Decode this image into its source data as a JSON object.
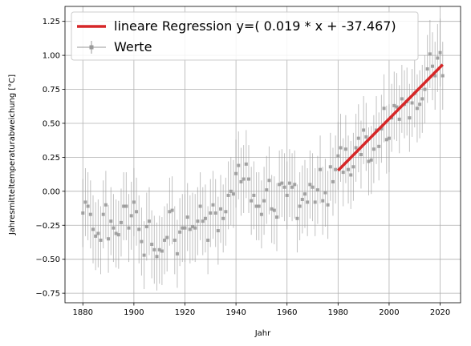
{
  "chart_data": {
    "type": "scatter",
    "xlabel": "Jahr",
    "ylabel": "Jahresmitteltemperaturabweichung [°C]",
    "xlim": [
      1873,
      2028
    ],
    "ylim": [
      -0.82,
      1.36
    ],
    "xticks": [
      1880,
      1900,
      1920,
      1940,
      1960,
      1980,
      2000,
      2020
    ],
    "yticks": [
      -0.75,
      -0.5,
      -0.25,
      0.0,
      0.25,
      0.5,
      0.75,
      1.0,
      1.25
    ],
    "xtick_labels": [
      "1880",
      "1900",
      "1920",
      "1940",
      "1960",
      "1980",
      "2000",
      "2020"
    ],
    "ytick_labels": [
      "−0.75",
      "−0.50",
      "−0.25",
      "0.00",
      "0.25",
      "0.50",
      "0.75",
      "1.00",
      "1.25"
    ],
    "grid": true,
    "legend_position": "top-left",
    "colors": {
      "data": "#999999",
      "regression": "#d62728",
      "grid": "#b0b0b0"
    },
    "error_bar": 0.25,
    "series": [
      {
        "name": "Werte",
        "style": "errorbar",
        "x": [
          1880,
          1881,
          1882,
          1883,
          1884,
          1885,
          1886,
          1887,
          1888,
          1889,
          1890,
          1891,
          1892,
          1893,
          1894,
          1895,
          1896,
          1897,
          1898,
          1899,
          1900,
          1901,
          1902,
          1903,
          1904,
          1905,
          1906,
          1907,
          1908,
          1909,
          1910,
          1911,
          1912,
          1913,
          1914,
          1915,
          1916,
          1917,
          1918,
          1919,
          1920,
          1921,
          1922,
          1923,
          1924,
          1925,
          1926,
          1927,
          1928,
          1929,
          1930,
          1931,
          1932,
          1933,
          1934,
          1935,
          1936,
          1937,
          1938,
          1939,
          1940,
          1941,
          1942,
          1943,
          1944,
          1945,
          1946,
          1947,
          1948,
          1949,
          1950,
          1951,
          1952,
          1953,
          1954,
          1955,
          1956,
          1957,
          1958,
          1959,
          1960,
          1961,
          1962,
          1963,
          1964,
          1965,
          1966,
          1967,
          1968,
          1969,
          1970,
          1971,
          1972,
          1973,
          1974,
          1975,
          1976,
          1977,
          1978,
          1979,
          1980,
          1981,
          1982,
          1983,
          1984,
          1985,
          1986,
          1987,
          1988,
          1989,
          1990,
          1991,
          1992,
          1993,
          1994,
          1995,
          1996,
          1997,
          1998,
          1999,
          2000,
          2001,
          2002,
          2003,
          2004,
          2005,
          2006,
          2007,
          2008,
          2009,
          2010,
          2011,
          2012,
          2013,
          2014,
          2015,
          2016,
          2017,
          2018,
          2019,
          2020,
          2021
        ],
        "y": [
          -0.16,
          -0.08,
          -0.11,
          -0.17,
          -0.28,
          -0.33,
          -0.31,
          -0.36,
          -0.17,
          -0.1,
          -0.35,
          -0.22,
          -0.27,
          -0.31,
          -0.32,
          -0.23,
          -0.11,
          -0.11,
          -0.27,
          -0.18,
          -0.08,
          -0.15,
          -0.28,
          -0.37,
          -0.47,
          -0.26,
          -0.22,
          -0.39,
          -0.43,
          -0.48,
          -0.43,
          -0.44,
          -0.36,
          -0.34,
          -0.15,
          -0.14,
          -0.36,
          -0.46,
          -0.3,
          -0.27,
          -0.27,
          -0.19,
          -0.28,
          -0.26,
          -0.27,
          -0.22,
          -0.11,
          -0.22,
          -0.2,
          -0.36,
          -0.16,
          -0.1,
          -0.16,
          -0.29,
          -0.13,
          -0.2,
          -0.15,
          -0.03,
          -0.0,
          -0.02,
          0.13,
          0.19,
          0.07,
          0.09,
          0.2,
          0.09,
          -0.07,
          -0.03,
          -0.11,
          -0.11,
          -0.17,
          -0.07,
          0.01,
          0.08,
          -0.13,
          -0.14,
          -0.19,
          0.05,
          0.06,
          0.03,
          -0.03,
          0.06,
          0.03,
          0.05,
          -0.2,
          -0.11,
          -0.06,
          -0.02,
          -0.08,
          0.05,
          0.03,
          -0.08,
          0.01,
          0.16,
          -0.07,
          -0.01,
          -0.1,
          0.18,
          0.07,
          0.16,
          0.26,
          0.32,
          0.14,
          0.31,
          0.16,
          0.12,
          0.18,
          0.32,
          0.39,
          0.27,
          0.45,
          0.4,
          0.22,
          0.23,
          0.31,
          0.45,
          0.33,
          0.46,
          0.61,
          0.38,
          0.39,
          0.54,
          0.63,
          0.62,
          0.53,
          0.68,
          0.64,
          0.66,
          0.54,
          0.65,
          0.72,
          0.61,
          0.64,
          0.68,
          0.75,
          0.9,
          1.01,
          0.92,
          0.85,
          0.98,
          1.02,
          0.85
        ]
      },
      {
        "name": "lineare Regression y=( 0.019 * x + -37.467)",
        "style": "line",
        "x": [
          1980,
          2021
        ],
        "y": [
          0.153,
          0.932
        ]
      }
    ]
  }
}
